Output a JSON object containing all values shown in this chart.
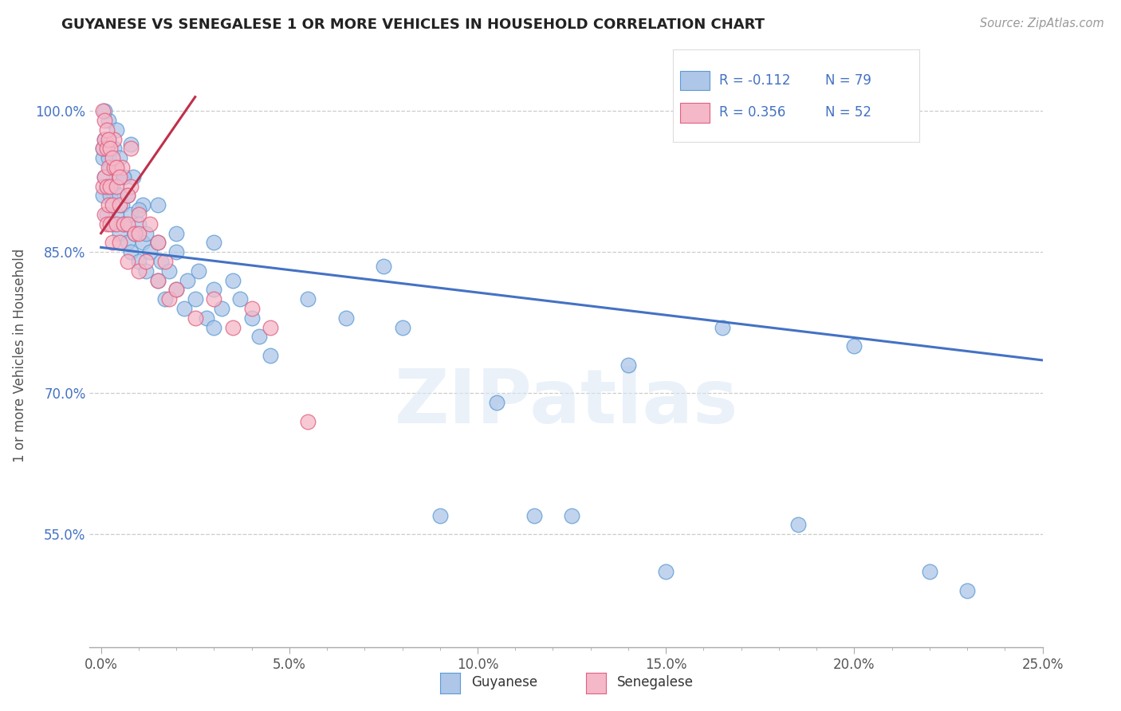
{
  "title": "GUYANESE VS SENEGALESE 1 OR MORE VEHICLES IN HOUSEHOLD CORRELATION CHART",
  "source": "Source: ZipAtlas.com",
  "ylabel": "1 or more Vehicles in Household",
  "xlabel_guyanese": "Guyanese",
  "xlabel_senegalese": "Senegalese",
  "xlim": [
    -0.3,
    25.0
  ],
  "ylim": [
    43.0,
    105.0
  ],
  "x_ticks": [
    0.0,
    5.0,
    10.0,
    15.0,
    20.0,
    25.0
  ],
  "x_tick_labels": [
    "0.0%",
    "5.0%",
    "10.0%",
    "15.0%",
    "20.0%",
    "25.0%"
  ],
  "y_ticks": [
    55.0,
    70.0,
    85.0,
    100.0
  ],
  "y_tick_labels": [
    "55.0%",
    "70.0%",
    "85.0%",
    "100.0%"
  ],
  "grid_color": "#cccccc",
  "background_color": "#ffffff",
  "blue_color": "#aec6e8",
  "pink_color": "#f5b8c8",
  "blue_edge": "#5b9bd5",
  "pink_edge": "#e06080",
  "trend_blue": "#4472c4",
  "trend_pink": "#c0304a",
  "legend_R_blue": "R = -0.112",
  "legend_N_blue": "N = 79",
  "legend_R_pink": "R = 0.356",
  "legend_N_pink": "N = 52",
  "watermark_text": "ZIPatlas",
  "blue_trend_x": [
    0.0,
    25.0
  ],
  "blue_trend_y": [
    85.5,
    73.5
  ],
  "pink_trend_x": [
    0.0,
    2.5
  ],
  "pink_trend_y": [
    87.0,
    101.5
  ],
  "blue_scatter_x": [
    0.05,
    0.05,
    0.1,
    0.1,
    0.15,
    0.15,
    0.2,
    0.2,
    0.25,
    0.25,
    0.3,
    0.3,
    0.35,
    0.4,
    0.4,
    0.5,
    0.5,
    0.5,
    0.55,
    0.6,
    0.6,
    0.7,
    0.7,
    0.8,
    0.8,
    0.85,
    0.9,
    1.0,
    1.0,
    1.1,
    1.1,
    1.2,
    1.2,
    1.3,
    1.5,
    1.5,
    1.6,
    1.7,
    1.8,
    2.0,
    2.0,
    2.2,
    2.3,
    2.5,
    2.6,
    2.8,
    3.0,
    3.0,
    3.2,
    3.5,
    3.7,
    4.0,
    4.2,
    4.5,
    5.5,
    6.5,
    7.5,
    8.0,
    9.0,
    10.5,
    11.5,
    12.5,
    14.0,
    15.0,
    16.5,
    18.5,
    20.0,
    22.0,
    23.0,
    0.05,
    0.1,
    0.2,
    0.4,
    0.6,
    0.8,
    1.0,
    1.5,
    2.0,
    3.0
  ],
  "blue_scatter_y": [
    91.0,
    95.0,
    93.0,
    97.0,
    89.0,
    92.0,
    95.0,
    99.0,
    91.0,
    94.0,
    88.0,
    92.0,
    96.0,
    89.0,
    93.0,
    87.0,
    91.0,
    95.0,
    90.0,
    88.0,
    93.0,
    86.0,
    91.0,
    85.0,
    89.0,
    93.0,
    87.0,
    84.0,
    88.0,
    86.0,
    90.0,
    83.0,
    87.0,
    85.0,
    82.0,
    86.0,
    84.0,
    80.0,
    83.0,
    81.0,
    85.0,
    79.0,
    82.0,
    80.0,
    83.0,
    78.0,
    77.0,
    81.0,
    79.0,
    82.0,
    80.0,
    78.0,
    76.0,
    74.0,
    80.0,
    78.0,
    83.5,
    77.0,
    57.0,
    69.0,
    57.0,
    57.0,
    73.0,
    51.0,
    77.0,
    56.0,
    75.0,
    51.0,
    49.0,
    96.0,
    100.0,
    96.5,
    98.0,
    93.0,
    96.5,
    89.5,
    90.0,
    87.0,
    86.0
  ],
  "pink_scatter_x": [
    0.05,
    0.05,
    0.1,
    0.1,
    0.1,
    0.15,
    0.15,
    0.15,
    0.2,
    0.2,
    0.25,
    0.25,
    0.3,
    0.3,
    0.35,
    0.35,
    0.4,
    0.4,
    0.5,
    0.5,
    0.55,
    0.6,
    0.7,
    0.7,
    0.8,
    0.8,
    0.9,
    1.0,
    1.0,
    1.2,
    1.3,
    1.5,
    1.5,
    1.7,
    1.8,
    2.0,
    2.5,
    3.0,
    3.5,
    4.0,
    4.5,
    5.5,
    0.05,
    0.1,
    0.15,
    0.2,
    0.25,
    0.3,
    0.4,
    0.5,
    0.7,
    1.0
  ],
  "pink_scatter_y": [
    92.0,
    96.0,
    89.0,
    93.0,
    97.0,
    88.0,
    92.0,
    96.0,
    90.0,
    94.0,
    88.0,
    92.0,
    86.0,
    90.0,
    94.0,
    97.0,
    88.0,
    92.0,
    86.0,
    90.0,
    94.0,
    88.0,
    84.0,
    88.0,
    92.0,
    96.0,
    87.0,
    83.0,
    87.0,
    84.0,
    88.0,
    82.0,
    86.0,
    84.0,
    80.0,
    81.0,
    78.0,
    80.0,
    77.0,
    79.0,
    77.0,
    67.0,
    100.0,
    99.0,
    98.0,
    97.0,
    96.0,
    95.0,
    94.0,
    93.0,
    91.0,
    89.0
  ]
}
